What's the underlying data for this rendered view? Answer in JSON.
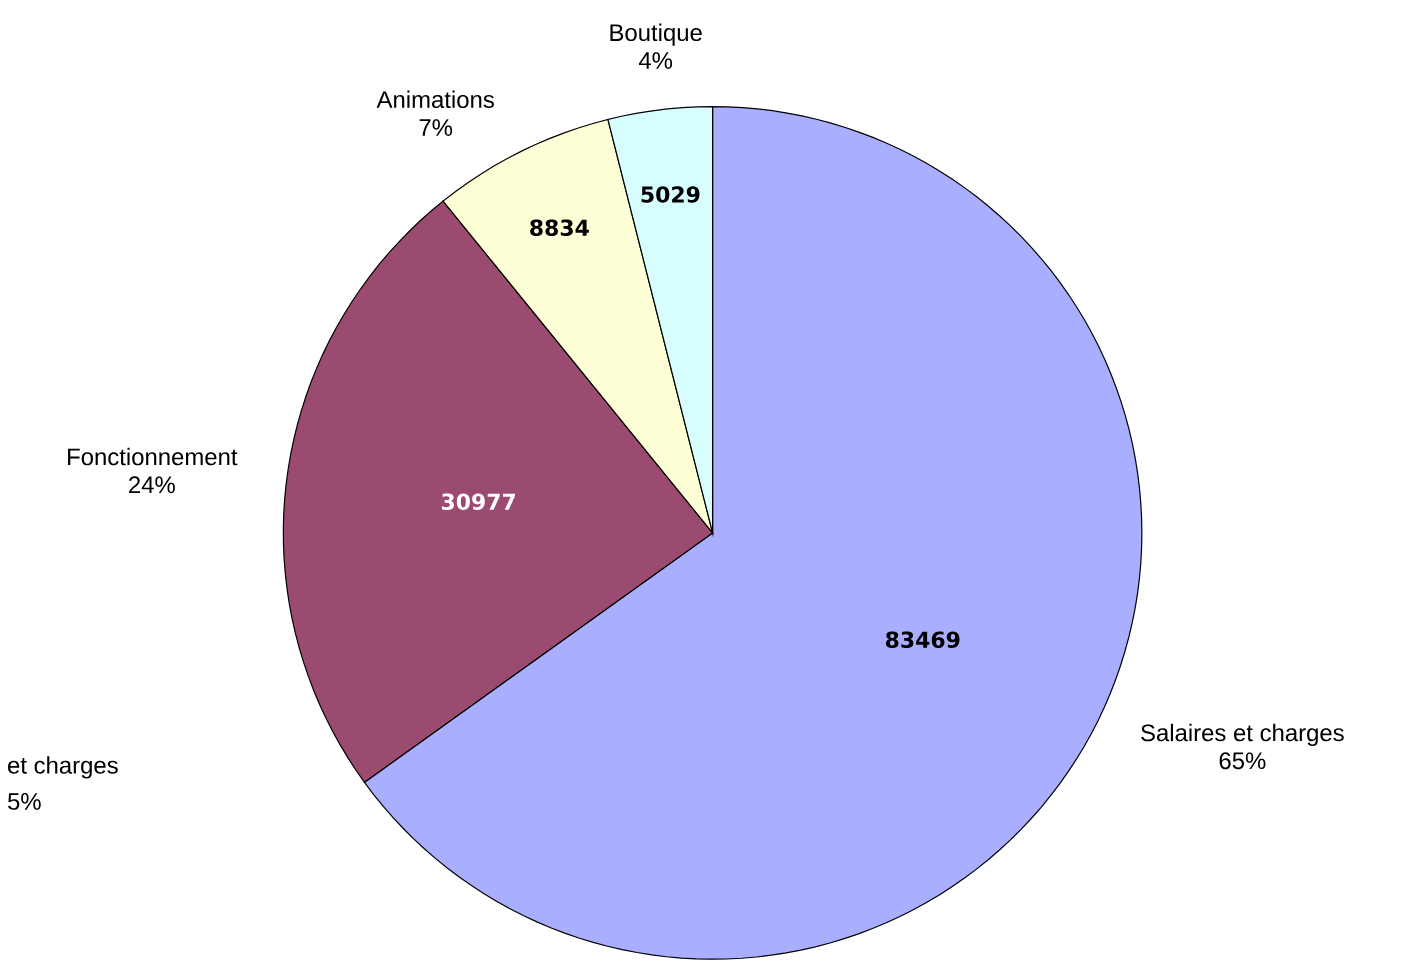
{
  "chart_data": {
    "type": "pie",
    "categories": [
      "Salaires et charges",
      "Fonctionnement",
      "Animations",
      "Boutique"
    ],
    "values": [
      83469,
      30977,
      8834,
      5029
    ],
    "colors": [
      "#a9aefe",
      "#9b4a70",
      "#fefed6",
      "#d7fefe"
    ],
    "data_labels": true,
    "annotations": [
      "65%",
      "24%",
      "7%",
      "4%",
      "et charges",
      "5%"
    ]
  }
}
